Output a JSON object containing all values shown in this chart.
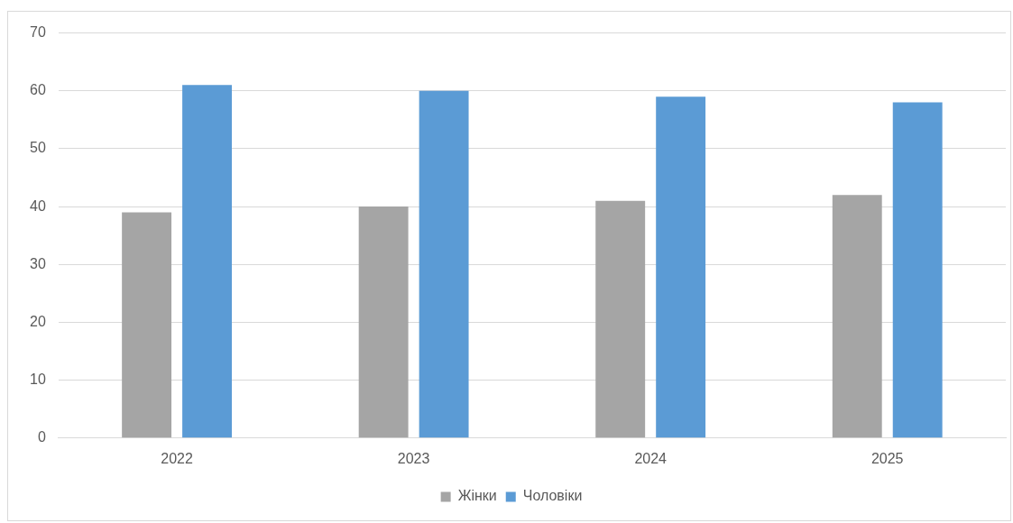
{
  "chart_data": {
    "type": "bar",
    "categories": [
      "2022",
      "2023",
      "2024",
      "2025"
    ],
    "series": [
      {
        "name": "Жінки",
        "color": "#a5a5a5",
        "values": [
          39,
          40,
          41,
          42
        ]
      },
      {
        "name": "Чоловіки",
        "color": "#5b9bd5",
        "values": [
          61,
          60,
          59,
          58
        ]
      }
    ],
    "ylim": [
      0,
      70
    ],
    "yticks": [
      0,
      10,
      20,
      30,
      40,
      50,
      60,
      70
    ],
    "grid": "y",
    "legend": "bottom"
  }
}
